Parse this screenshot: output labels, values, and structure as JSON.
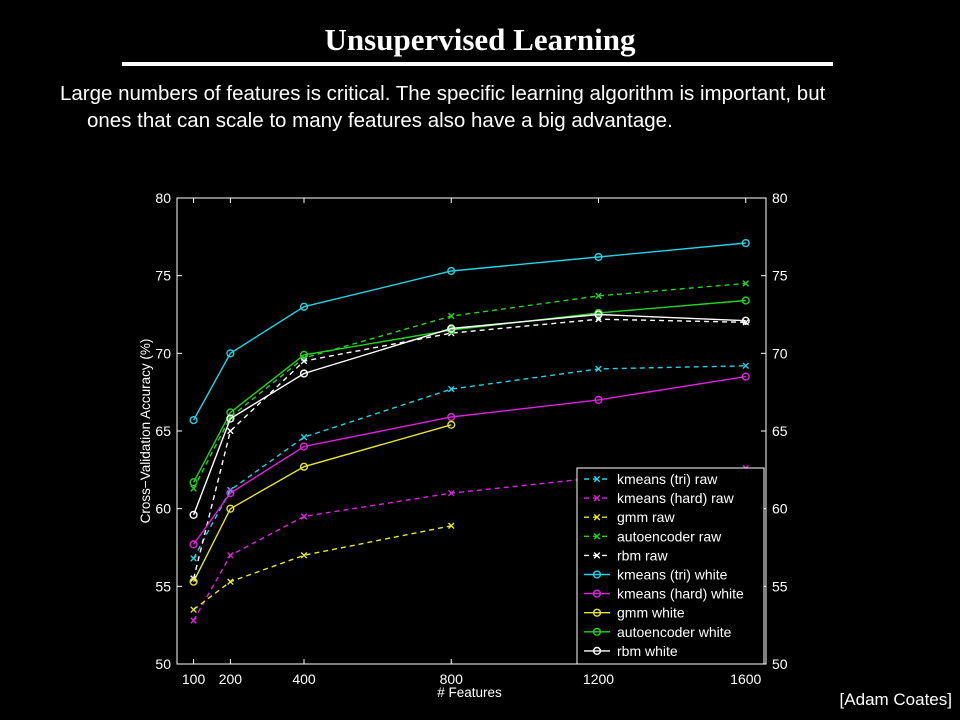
{
  "slide": {
    "title": "Unsupervised Learning",
    "bullet": "Large numbers of features is critical. The specific learning algorithm is important, but ones that can scale to many features also have a big advantage.",
    "credit": "[Adam Coates]"
  },
  "chart_data": {
    "type": "line",
    "title": "",
    "xlabel": "# Features",
    "ylabel": "Cross−Validation Accuracy (%)",
    "x": [
      100,
      200,
      400,
      800,
      1200,
      1600
    ],
    "xticks": [
      "100",
      "200",
      "400",
      "800",
      "1200",
      "1600"
    ],
    "yticks": [
      "50",
      "55",
      "60",
      "65",
      "70",
      "75",
      "80"
    ],
    "xlim": [
      55,
      1655
    ],
    "ylim": [
      50,
      80
    ],
    "grid": false,
    "legend_position": "bottom-right",
    "series": [
      {
        "name": "kmeans (tri) raw",
        "color": "#22d3e6",
        "dashed": true,
        "marker": "x",
        "x": [
          100,
          200,
          400,
          800,
          1200,
          1600
        ],
        "values": [
          56.8,
          61.2,
          64.6,
          67.7,
          69.0,
          69.2
        ]
      },
      {
        "name": "kmeans (hard) raw",
        "color": "#e020e0",
        "dashed": true,
        "marker": "x",
        "x": [
          100,
          200,
          400,
          800,
          1200,
          1600
        ],
        "values": [
          52.8,
          57.0,
          59.5,
          61.0,
          62.0,
          62.6
        ]
      },
      {
        "name": "gmm raw",
        "color": "#e6e62a",
        "dashed": true,
        "marker": "x",
        "x": [
          100,
          200,
          400,
          800
        ],
        "values": [
          53.5,
          55.3,
          57.0,
          58.9
        ]
      },
      {
        "name": "autoencoder raw",
        "color": "#22d322",
        "dashed": true,
        "marker": "x",
        "x": [
          100,
          200,
          400,
          800,
          1200,
          1600
        ],
        "values": [
          61.3,
          65.9,
          69.7,
          72.4,
          73.7,
          74.5
        ]
      },
      {
        "name": "rbm raw",
        "color": "#ffffff",
        "dashed": true,
        "marker": "x",
        "x": [
          100,
          200,
          400,
          800,
          1200,
          1600
        ],
        "values": [
          55.5,
          65.0,
          69.5,
          71.3,
          72.2,
          72.0
        ]
      },
      {
        "name": "kmeans (tri) white",
        "color": "#22d3e6",
        "dashed": false,
        "marker": "o",
        "x": [
          100,
          200,
          400,
          800,
          1200,
          1600
        ],
        "values": [
          65.7,
          70.0,
          73.0,
          75.3,
          76.2,
          77.1
        ]
      },
      {
        "name": "kmeans (hard) white",
        "color": "#e020e0",
        "dashed": false,
        "marker": "o",
        "x": [
          100,
          200,
          400,
          800,
          1200,
          1600
        ],
        "values": [
          57.7,
          61.0,
          64.0,
          65.9,
          67.0,
          68.5
        ]
      },
      {
        "name": "gmm white",
        "color": "#e6e62a",
        "dashed": false,
        "marker": "o",
        "x": [
          100,
          200,
          400,
          800
        ],
        "values": [
          55.3,
          60.0,
          62.7,
          65.4
        ]
      },
      {
        "name": "autoencoder white",
        "color": "#22d322",
        "dashed": false,
        "marker": "o",
        "x": [
          100,
          200,
          400,
          800,
          1200,
          1600
        ],
        "values": [
          61.7,
          66.2,
          69.9,
          71.5,
          72.6,
          73.4
        ]
      },
      {
        "name": "rbm white",
        "color": "#ffffff",
        "dashed": false,
        "marker": "o",
        "x": [
          100,
          200,
          400,
          800,
          1200,
          1600
        ],
        "values": [
          59.6,
          65.8,
          68.7,
          71.6,
          72.5,
          72.1
        ]
      }
    ]
  }
}
